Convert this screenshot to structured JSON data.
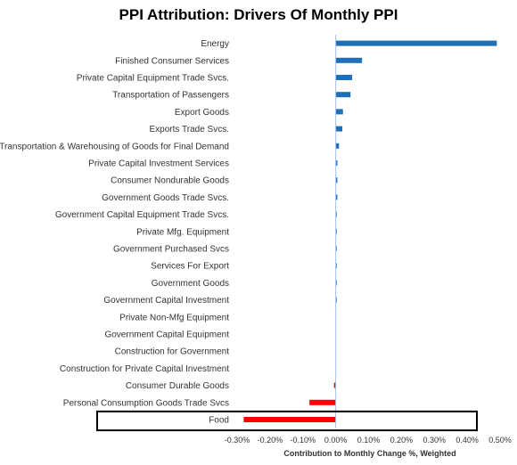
{
  "chart_data": {
    "type": "bar",
    "orientation": "horizontal",
    "title": "PPI Attribution: Drivers Of Monthly PPI",
    "xlabel": "Contribution to Monthly Change %, Weighted",
    "ylabel": "",
    "xlim": [
      -0.3,
      0.5
    ],
    "xticks": [
      -0.3,
      -0.2,
      -0.1,
      0.0,
      0.1,
      0.2,
      0.3,
      0.4,
      0.5
    ],
    "xtick_labels": [
      "-0.30%",
      "-0.20%",
      "-0.10%",
      "0.00%",
      "0.10%",
      "0.20%",
      "0.30%",
      "0.40%",
      "0.50%"
    ],
    "grid": false,
    "highlighted_category": "Food",
    "colors": {
      "positive": "#1f6fb8",
      "negative": "#ff0000",
      "axis": "#9dc3e6"
    },
    "categories": [
      "Energy",
      "Finished Consumer Services",
      "Private Capital Equipment Trade Svcs.",
      "Transportation of Passengers",
      "Export Goods",
      "Exports Trade Svcs.",
      "Transportation & Warehousing of Goods for Final Demand",
      "Private Capital Investment Services",
      "Consumer Nondurable Goods",
      "Government Goods Trade Svcs.",
      "Government Capital Equipment Trade Svcs.",
      "Private Mfg. Equipment",
      "Government Purchased Svcs",
      "Services For Export",
      "Government Goods",
      "Government Capital Investment",
      "Private Non-Mfg Equipment",
      "Government Capital Equipment",
      "Construction for Government",
      "Construction for Private Capital Investment",
      "Consumer Durable Goods",
      "Personal Consumption Goods Trade Svcs",
      "Food"
    ],
    "values": [
      0.49,
      0.08,
      0.05,
      0.045,
      0.022,
      0.02,
      0.01,
      0.005,
      0.005,
      0.005,
      0.003,
      0.003,
      0.003,
      0.003,
      0.003,
      0.003,
      0.0,
      0.0,
      0.0,
      0.0,
      -0.005,
      -0.08,
      -0.28
    ]
  }
}
